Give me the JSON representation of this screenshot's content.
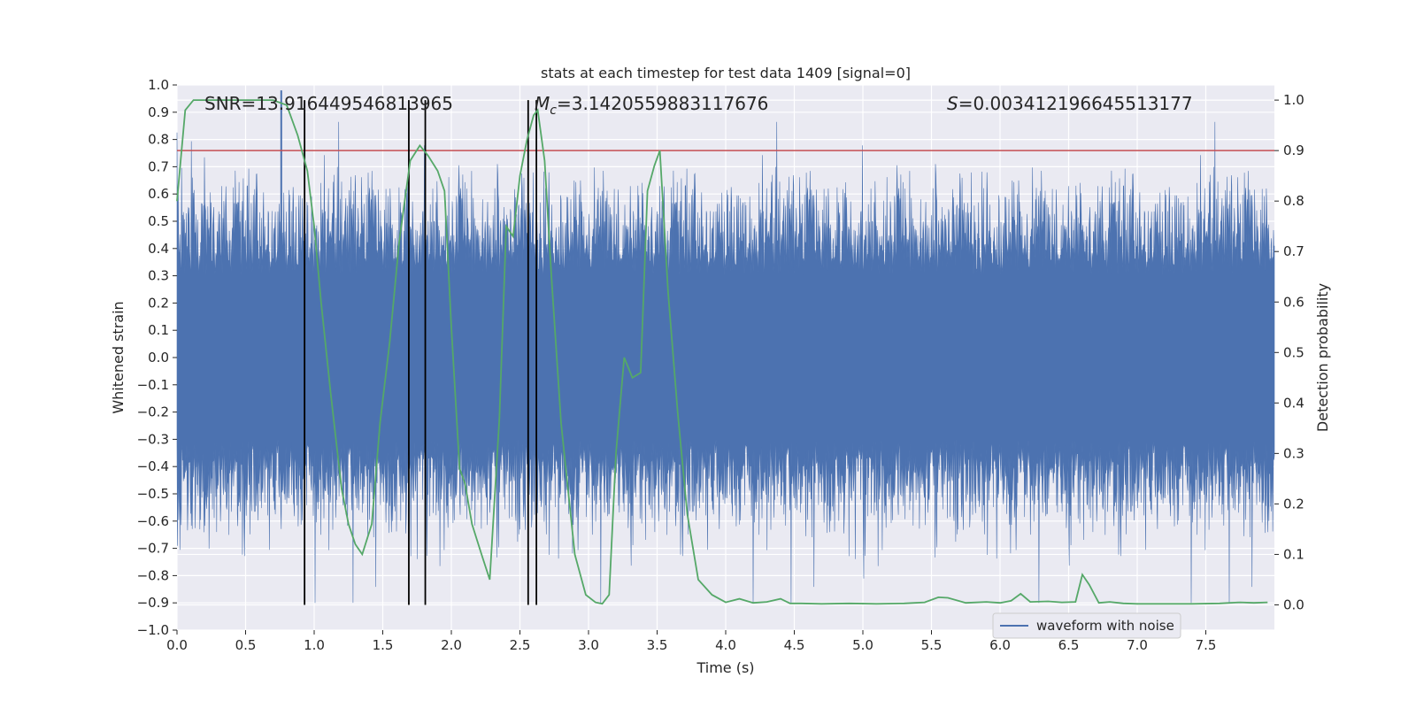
{
  "chart_data": {
    "type": "line",
    "title": "stats at each timestep for test data 1409 [signal=0]",
    "xlabel": "Time (s)",
    "ylabel_left": "Whitened strain",
    "ylabel_right": "Detection probability",
    "xlim": [
      0.0,
      8.0
    ],
    "ylim_left": [
      -1.0,
      1.0
    ],
    "ylim_right": [
      -0.05,
      1.03
    ],
    "x_ticks": [
      "0.0",
      "0.5",
      "1.0",
      "1.5",
      "2.0",
      "2.5",
      "3.0",
      "3.5",
      "4.0",
      "4.5",
      "5.0",
      "5.5",
      "6.0",
      "6.5",
      "7.0",
      "7.5"
    ],
    "x_tick_values": [
      0.0,
      0.5,
      1.0,
      1.5,
      2.0,
      2.5,
      3.0,
      3.5,
      4.0,
      4.5,
      5.0,
      5.5,
      6.0,
      6.5,
      7.0,
      7.5
    ],
    "y_left_ticks": [
      "1.0",
      "0.9",
      "0.8",
      "0.7",
      "0.6",
      "0.5",
      "0.4",
      "0.3",
      "0.2",
      "0.1",
      "0.0",
      "−0.1",
      "−0.2",
      "−0.3",
      "−0.4",
      "−0.5",
      "−0.6",
      "−0.7",
      "−0.8",
      "−0.9",
      "−1.0"
    ],
    "y_left_tick_values": [
      1.0,
      0.9,
      0.8,
      0.7,
      0.6,
      0.5,
      0.4,
      0.3,
      0.2,
      0.1,
      0.0,
      -0.1,
      -0.2,
      -0.3,
      -0.4,
      -0.5,
      -0.6,
      -0.7,
      -0.8,
      -0.9,
      -1.0
    ],
    "y_right_ticks": [
      "1.0",
      "0.9",
      "0.8",
      "0.7",
      "0.6",
      "0.5",
      "0.4",
      "0.3",
      "0.2",
      "0.1",
      "0.0"
    ],
    "y_right_tick_values": [
      1.0,
      0.9,
      0.8,
      0.7,
      0.6,
      0.5,
      0.4,
      0.3,
      0.2,
      0.1,
      0.0
    ],
    "grid": true,
    "legend": {
      "position": "bottom-right",
      "entries": [
        "waveform with noise"
      ]
    },
    "annotations": {
      "snr": "SNR=13.916449546813965",
      "mc_symbol": "M",
      "mc_sub": "c",
      "mc_value": "=3.1420559883117676",
      "s_symbol": "S",
      "s_value": "=0.003412196645513177"
    },
    "threshold": {
      "axis": "right",
      "value": 0.9,
      "color": "#c44e52"
    },
    "vertical_markers": {
      "x": [
        0.93,
        1.69,
        1.81,
        2.56,
        2.62
      ],
      "ymin_right": 0.0,
      "ymax_right": 1.0,
      "color": "#000000"
    },
    "series": [
      {
        "name": "waveform with noise",
        "color": "#4c72b0",
        "axis": "left",
        "kind": "noise",
        "typical_peak": 0.55,
        "max_abs": 1.0
      },
      {
        "color": "#55a868",
        "axis": "right",
        "x": [
          0.0,
          0.06,
          0.12,
          0.2,
          0.3,
          0.4,
          0.5,
          0.6,
          0.7,
          0.8,
          0.88,
          0.95,
          1.0,
          1.05,
          1.12,
          1.2,
          1.25,
          1.3,
          1.35,
          1.42,
          1.48,
          1.55,
          1.62,
          1.7,
          1.77,
          1.83,
          1.9,
          1.95,
          2.0,
          2.06,
          2.1,
          2.15,
          2.22,
          2.28,
          2.35,
          2.4,
          2.45,
          2.5,
          2.55,
          2.6,
          2.63,
          2.68,
          2.73,
          2.8,
          2.9,
          2.98,
          3.05,
          3.1,
          3.15,
          3.2,
          3.26,
          3.32,
          3.38,
          3.43,
          3.48,
          3.52,
          3.58,
          3.65,
          3.72,
          3.8,
          3.9,
          4.0,
          4.1,
          4.2,
          4.3,
          4.4,
          4.47,
          4.55,
          4.7,
          4.9,
          5.1,
          5.3,
          5.45,
          5.55,
          5.62,
          5.75,
          5.9,
          6.0,
          6.08,
          6.15,
          6.22,
          6.35,
          6.45,
          6.55,
          6.6,
          6.65,
          6.72,
          6.8,
          6.9,
          7.0,
          7.2,
          7.4,
          7.6,
          7.75,
          7.85,
          7.95
        ],
        "y": [
          0.8,
          0.98,
          1.0,
          1.0,
          1.0,
          1.0,
          1.0,
          1.0,
          1.0,
          0.99,
          0.93,
          0.86,
          0.75,
          0.6,
          0.42,
          0.23,
          0.16,
          0.12,
          0.1,
          0.16,
          0.36,
          0.52,
          0.72,
          0.88,
          0.91,
          0.89,
          0.86,
          0.82,
          0.55,
          0.27,
          0.24,
          0.16,
          0.1,
          0.05,
          0.37,
          0.75,
          0.73,
          0.85,
          0.92,
          0.97,
          0.98,
          0.88,
          0.65,
          0.36,
          0.1,
          0.02,
          0.005,
          0.002,
          0.02,
          0.3,
          0.49,
          0.45,
          0.46,
          0.82,
          0.87,
          0.9,
          0.62,
          0.38,
          0.18,
          0.05,
          0.02,
          0.005,
          0.012,
          0.004,
          0.006,
          0.012,
          0.003,
          0.003,
          0.002,
          0.003,
          0.002,
          0.003,
          0.005,
          0.015,
          0.014,
          0.004,
          0.006,
          0.004,
          0.008,
          0.022,
          0.006,
          0.007,
          0.005,
          0.006,
          0.06,
          0.04,
          0.004,
          0.006,
          0.003,
          0.002,
          0.002,
          0.002,
          0.003,
          0.005,
          0.004,
          0.005
        ]
      }
    ]
  }
}
